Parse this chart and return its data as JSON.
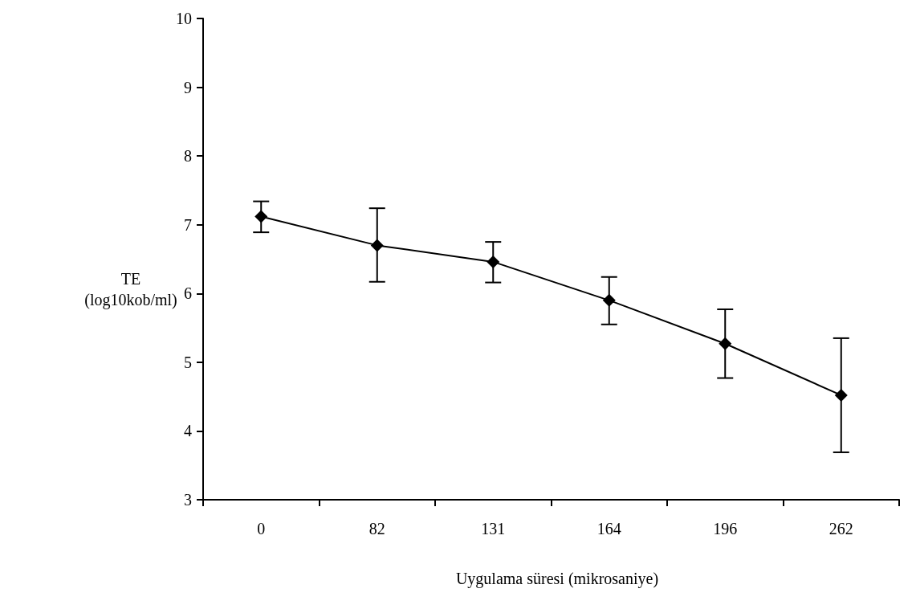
{
  "chart_data": {
    "type": "line",
    "xlabel": "Uygulama süresi (mikrosaniye)",
    "ylabel": "TE\n(log10kob/ml)",
    "categories": [
      "0",
      "82",
      "131",
      "164",
      "196",
      "262"
    ],
    "series": [
      {
        "color": "#000000",
        "values": [
          7.12,
          6.7,
          6.46,
          5.9,
          5.27,
          4.52
        ],
        "errors": [
          [
            6.89,
            7.34
          ],
          [
            6.17,
            7.24
          ],
          [
            6.16,
            6.75
          ],
          [
            5.55,
            6.24
          ],
          [
            4.77,
            5.77
          ],
          [
            3.69,
            5.35
          ]
        ]
      }
    ],
    "ylim": [
      3,
      10
    ],
    "yticks": [
      3,
      4,
      5,
      6,
      7,
      8,
      9,
      10
    ],
    "grid": false,
    "marker": "diamond",
    "line_style": "solid"
  }
}
